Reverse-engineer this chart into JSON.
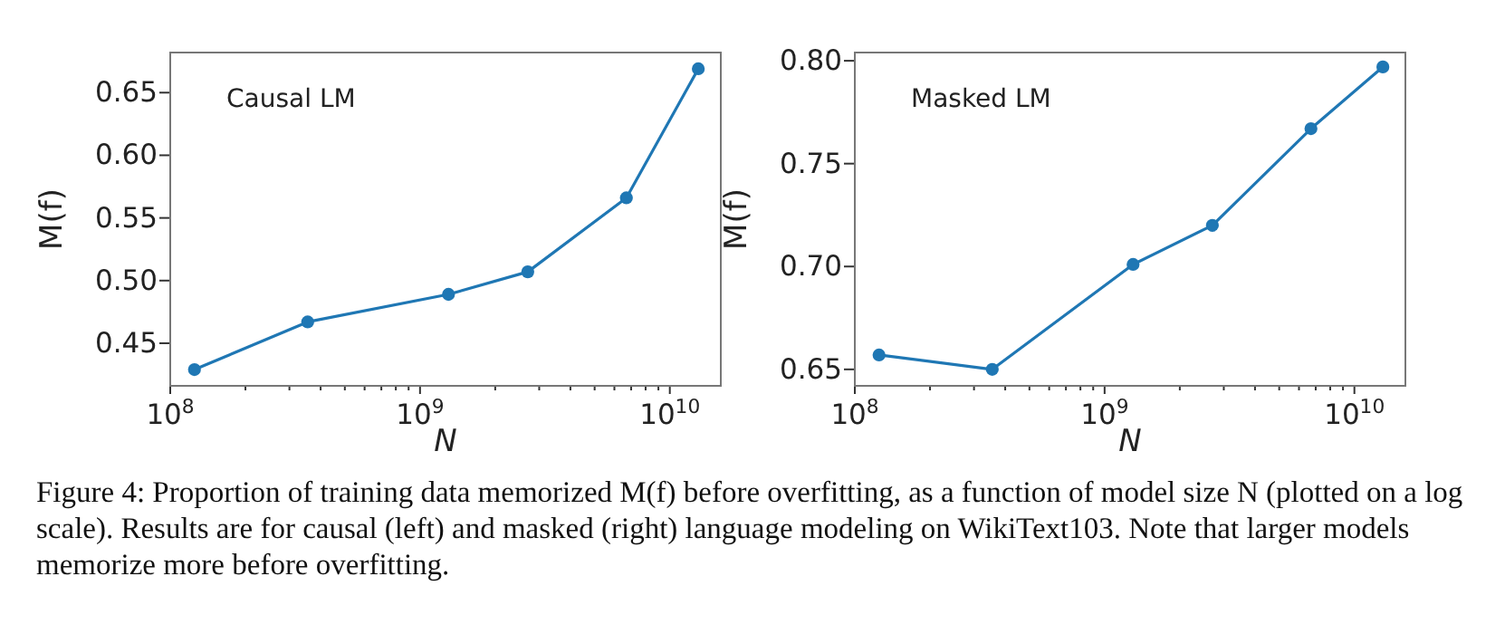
{
  "chart_data": [
    {
      "type": "line",
      "title": "Causal LM",
      "xlabel": "N",
      "ylabel": "M(f)",
      "log": "x",
      "marker": "circle",
      "grid": false,
      "x": [
        125000000,
        355000000,
        1300000000,
        2700000000,
        6700000000,
        13000000000
      ],
      "series": [
        {
          "color": "#1f77b4",
          "values": [
            0.429,
            0.467,
            0.489,
            0.507,
            0.566,
            0.669
          ]
        }
      ],
      "xlim": [
        100000000,
        16000000000
      ],
      "xticks": [
        {
          "value": 100000000,
          "label": "10$^{8}$"
        },
        {
          "value": 200000000,
          "label": null
        },
        {
          "value": 300000000,
          "label": null
        },
        {
          "value": 400000000,
          "label": null
        },
        {
          "value": 500000000,
          "label": null
        },
        {
          "value": 600000000,
          "label": null
        },
        {
          "value": 700000000,
          "label": null
        },
        {
          "value": 800000000,
          "label": null
        },
        {
          "value": 900000000,
          "label": null
        },
        {
          "value": 1000000000,
          "label": "10$^{9}$"
        },
        {
          "value": 2000000000,
          "label": null
        },
        {
          "value": 3000000000,
          "label": null
        },
        {
          "value": 4000000000,
          "label": null
        },
        {
          "value": 5000000000,
          "label": null
        },
        {
          "value": 6000000000,
          "label": null
        },
        {
          "value": 7000000000,
          "label": null
        },
        {
          "value": 8000000000,
          "label": null
        },
        {
          "value": 9000000000,
          "label": null
        },
        {
          "value": 10000000000,
          "label": "10$^{10}$"
        }
      ],
      "ylim": [
        0.416,
        0.682
      ],
      "yticks": [
        {
          "value": 0.45,
          "label": "0.45"
        },
        {
          "value": 0.5,
          "label": "0.50"
        },
        {
          "value": 0.55,
          "label": "0.55"
        },
        {
          "value": 0.6,
          "label": "0.60"
        },
        {
          "value": 0.65,
          "label": "0.65"
        }
      ],
      "annotations": [
        "Figure 4: Proportion of training data memorized M(f) before overfitting, as a function of model size N (plotted on a log scale). Results are for causal (left) and masked (right) language modeling on WikiText103. Note that larger models memorize more before overfitting."
      ]
    },
    {
      "type": "line",
      "title": "Masked LM",
      "xlabel": "N",
      "ylabel": "M(f)",
      "log": "x",
      "marker": "circle",
      "grid": false,
      "x": [
        125000000,
        355000000,
        1300000000,
        2700000000,
        6700000000,
        13000000000
      ],
      "series": [
        {
          "color": "#1f77b4",
          "values": [
            0.657,
            0.65,
            0.701,
            0.72,
            0.767,
            0.797
          ]
        }
      ],
      "xlim": [
        100000000,
        16000000000
      ],
      "xticks": [
        {
          "value": 100000000,
          "label": "10$^{8}$"
        },
        {
          "value": 200000000,
          "label": null
        },
        {
          "value": 300000000,
          "label": null
        },
        {
          "value": 400000000,
          "label": null
        },
        {
          "value": 500000000,
          "label": null
        },
        {
          "value": 600000000,
          "label": null
        },
        {
          "value": 700000000,
          "label": null
        },
        {
          "value": 800000000,
          "label": null
        },
        {
          "value": 900000000,
          "label": null
        },
        {
          "value": 1000000000,
          "label": "10$^{9}$"
        },
        {
          "value": 2000000000,
          "label": null
        },
        {
          "value": 3000000000,
          "label": null
        },
        {
          "value": 4000000000,
          "label": null
        },
        {
          "value": 5000000000,
          "label": null
        },
        {
          "value": 6000000000,
          "label": null
        },
        {
          "value": 7000000000,
          "label": null
        },
        {
          "value": 8000000000,
          "label": null
        },
        {
          "value": 9000000000,
          "label": null
        },
        {
          "value": 10000000000,
          "label": "10$^{10}$"
        }
      ],
      "ylim": [
        0.642,
        0.804
      ],
      "yticks": [
        {
          "value": 0.65,
          "label": "0.65"
        },
        {
          "value": 0.7,
          "label": "0.70"
        },
        {
          "value": 0.75,
          "label": "0.75"
        },
        {
          "value": 0.8,
          "label": "0.80"
        }
      ]
    }
  ]
}
